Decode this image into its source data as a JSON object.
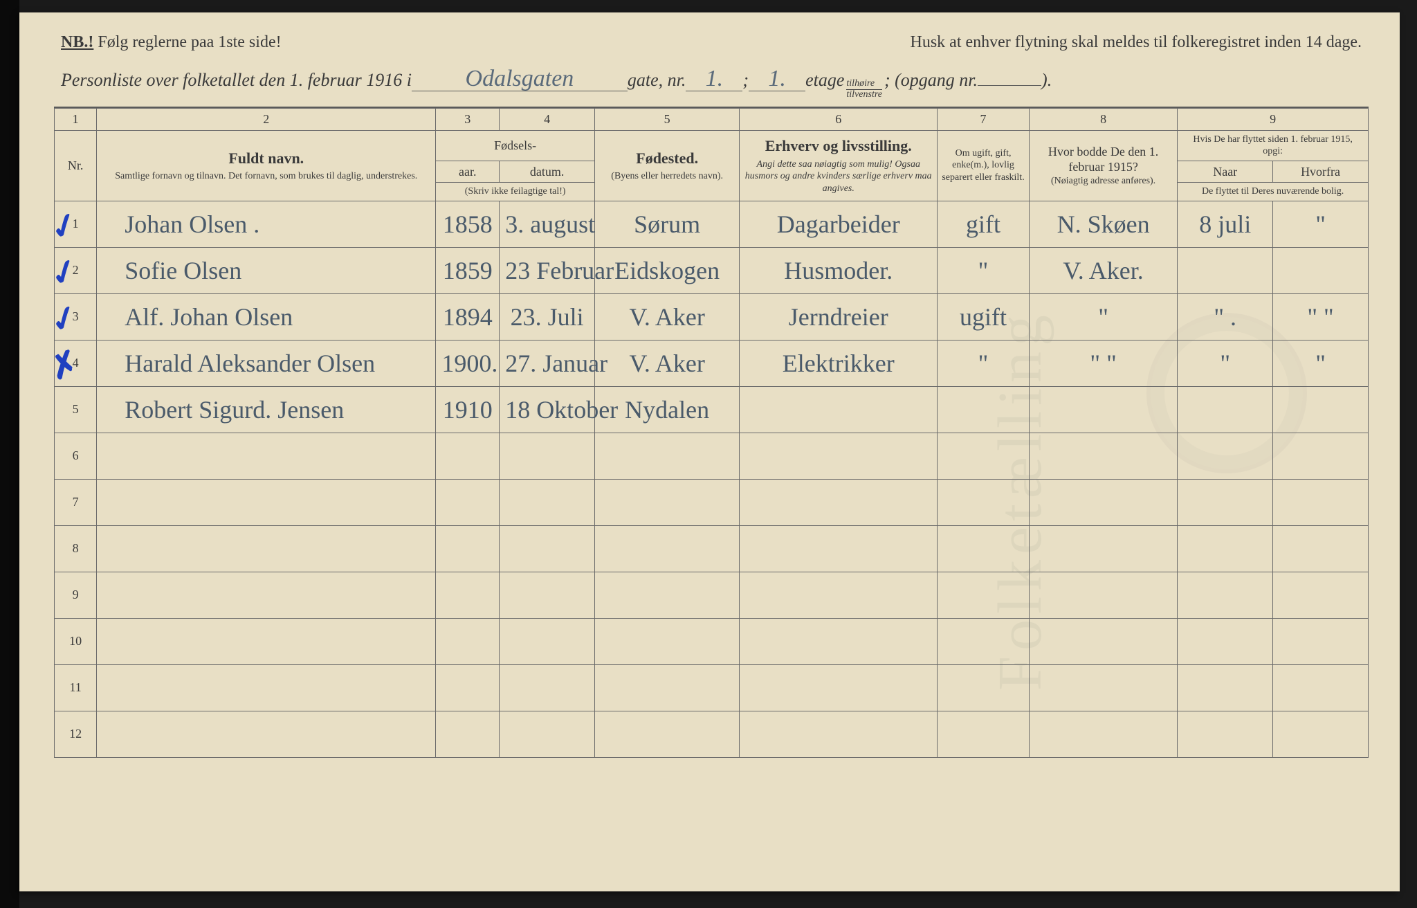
{
  "header": {
    "nb_label": "NB.!",
    "nb_text": "Følg reglerne paa 1ste side!",
    "reminder": "Husk at enhver flytning skal meldes til folkeregistret inden 14 dage.",
    "title_prefix": "Personliste over folketallet den 1. februar 1916 i",
    "street_value": "Odalsgaten",
    "gate_label": "gate, nr.",
    "gate_nr": "1.",
    "semicolon": ";",
    "etage_nr": "1.",
    "etage_label": "etage",
    "frac_top": "tilhøire",
    "frac_bot": "tilvenstre",
    "opgang_label": "; (opgang nr.",
    "opgang_nr": "",
    "close": ")."
  },
  "colnums": [
    "1",
    "2",
    "3",
    "4",
    "5",
    "6",
    "7",
    "8",
    "9"
  ],
  "headers": {
    "nr": "Nr.",
    "name_big": "Fuldt navn.",
    "name_sub": "Samtlige fornavn og tilnavn.  Det fornavn, som brukes til daglig, understrekes.",
    "birth_top": "Fødsels-",
    "year": "aar.",
    "date": "datum.",
    "birth_note": "(Skriv ikke feilagtige tal!)",
    "place_big": "Fødested.",
    "place_sub": "(Byens eller herredets navn).",
    "occ_big": "Erhverv og livsstilling.",
    "occ_sub": "Angi dette saa nøiagtig som mulig! Ogsaa husmors og andre kvinders særlige erhverv maa angives.",
    "marital": "Om ugift, gift, enke(m.), lovlig separert eller fraskilt.",
    "addr1915_big": "Hvor bodde De den 1. februar 1915?",
    "addr1915_sub": "(Nøiagtig adresse anføres).",
    "moved_top": "Hvis De har flyttet siden 1. februar 1915, opgi:",
    "moved_when": "Naar",
    "moved_from": "Hvorfra",
    "moved_note": "De flyttet til Deres nuværende bolig."
  },
  "rows": [
    {
      "n": "1",
      "mark": "✓",
      "name": "Johan Olsen .",
      "year": "1858",
      "date": "3. august",
      "place": "Sørum",
      "occ": "Dagarbeider",
      "mar": "gift",
      "addr": "N. Skøen",
      "when": "8 juli",
      "from": "\" "
    },
    {
      "n": "2",
      "mark": "✓",
      "name": "Sofie Olsen",
      "year": "1859",
      "date": "23 Februar",
      "place": "Eidskogen",
      "occ": "Husmoder.",
      "mar": "\"",
      "addr": "V. Aker.",
      "when": "",
      "from": ""
    },
    {
      "n": "3",
      "mark": "✓",
      "name": "Alf. Johan Olsen",
      "year": "1894",
      "date": "23. Juli",
      "place": "V. Aker",
      "occ": "Jerndreier",
      "mar": "ugift",
      "addr": "\"",
      "when": "\"  .",
      "from": "\" \""
    },
    {
      "n": "4",
      "mark": "✗",
      "name": "Harald Aleksander Olsen",
      "year": "1900.",
      "date": "27. Januar",
      "place": "V. Aker",
      "occ": "Elektrikker",
      "mar": "\"",
      "addr": "\" \"",
      "when": "\"",
      "from": "\""
    },
    {
      "n": "5",
      "mark": "",
      "name": "Robert Sigurd. Jensen",
      "year": "1910",
      "date": "18 Oktober",
      "place": "Nydalen",
      "occ": "",
      "mar": "",
      "addr": "",
      "when": "",
      "from": ""
    }
  ],
  "empty_rows": [
    "6",
    "7",
    "8",
    "9",
    "10",
    "11",
    "12"
  ],
  "colors": {
    "paper": "#e8dfc5",
    "ink": "#3a3a3a",
    "rule": "#6a6a6a",
    "handwriting": "#4a5a6a",
    "blue_pencil": "#2040c0"
  }
}
